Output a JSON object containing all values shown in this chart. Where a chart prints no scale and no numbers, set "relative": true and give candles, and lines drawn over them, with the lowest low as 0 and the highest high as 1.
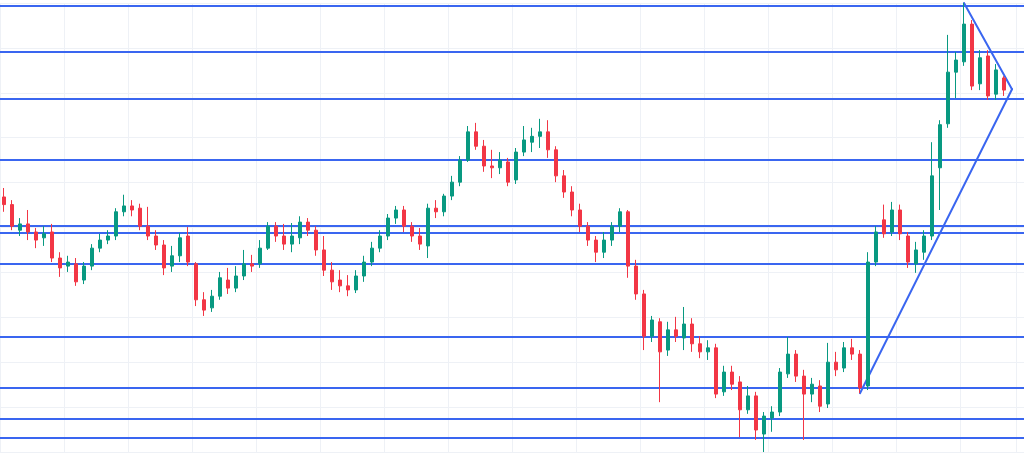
{
  "chart_data": {
    "type": "candlestick",
    "relative": true,
    "grid": true,
    "tick_labels": false,
    "categories": [
      null,
      null,
      null,
      null,
      null,
      null,
      null,
      null,
      null,
      null,
      null,
      null,
      null,
      null,
      null,
      null,
      null,
      null,
      null,
      null,
      null,
      null,
      null,
      null,
      null,
      null,
      null,
      null,
      null,
      null,
      null,
      null,
      null,
      null,
      null,
      null,
      null,
      null,
      null,
      null,
      null,
      null,
      null,
      null,
      null,
      null,
      null,
      null,
      null,
      null,
      null,
      null,
      null,
      null,
      null,
      null,
      null,
      null,
      null,
      null,
      null,
      null,
      null,
      null,
      null,
      null,
      null,
      null,
      null,
      null,
      null,
      null,
      null,
      null,
      null,
      null,
      null,
      null,
      null,
      null,
      null,
      null,
      null,
      null,
      null,
      null,
      null,
      null,
      null,
      null,
      null,
      null,
      null,
      null,
      null,
      null,
      null,
      null,
      null,
      null,
      null,
      null,
      null,
      null,
      null,
      null,
      null,
      null,
      null,
      null,
      null,
      null,
      null,
      null,
      null,
      null,
      null,
      null,
      null,
      null,
      null,
      null,
      null,
      null,
      null,
      null,
      null,
      null
    ],
    "ohlc": [
      [
        0.568,
        0.588,
        0.535,
        0.551
      ],
      [
        0.551,
        0.561,
        0.494,
        0.503
      ],
      [
        0.494,
        0.521,
        0.481,
        0.508
      ],
      [
        0.508,
        0.539,
        0.472,
        0.49
      ],
      [
        0.49,
        0.499,
        0.454,
        0.472
      ],
      [
        0.477,
        0.503,
        0.459,
        0.486
      ],
      [
        0.49,
        0.508,
        0.423,
        0.432
      ],
      [
        0.432,
        0.445,
        0.39,
        0.41
      ],
      [
        0.414,
        0.437,
        0.401,
        0.423
      ],
      [
        0.419,
        0.432,
        0.37,
        0.379
      ],
      [
        0.383,
        0.423,
        0.374,
        0.414
      ],
      [
        0.414,
        0.463,
        0.405,
        0.454
      ],
      [
        0.454,
        0.486,
        0.445,
        0.472
      ],
      [
        0.472,
        0.494,
        0.463,
        0.481
      ],
      [
        0.481,
        0.543,
        0.472,
        0.535
      ],
      [
        0.535,
        0.573,
        0.525,
        0.548
      ],
      [
        0.548,
        0.561,
        0.525,
        0.539
      ],
      [
        0.543,
        0.553,
        0.494,
        0.503
      ],
      [
        0.503,
        0.546,
        0.472,
        0.481
      ],
      [
        0.481,
        0.494,
        0.45,
        0.461
      ],
      [
        0.461,
        0.472,
        0.394,
        0.41
      ],
      [
        0.414,
        0.459,
        0.401,
        0.437
      ],
      [
        0.437,
        0.488,
        0.423,
        0.477
      ],
      [
        0.481,
        0.501,
        0.414,
        0.423
      ],
      [
        0.419,
        0.423,
        0.325,
        0.339
      ],
      [
        0.339,
        0.356,
        0.303,
        0.316
      ],
      [
        0.321,
        0.361,
        0.312,
        0.347
      ],
      [
        0.347,
        0.401,
        0.339,
        0.388
      ],
      [
        0.383,
        0.41,
        0.352,
        0.365
      ],
      [
        0.365,
        0.414,
        0.356,
        0.392
      ],
      [
        0.392,
        0.45,
        0.383,
        0.419
      ],
      [
        0.419,
        0.439,
        0.401,
        0.414
      ],
      [
        0.419,
        0.472,
        0.41,
        0.454
      ],
      [
        0.454,
        0.512,
        0.45,
        0.503
      ],
      [
        0.503,
        0.512,
        0.468,
        0.481
      ],
      [
        0.481,
        0.508,
        0.45,
        0.463
      ],
      [
        0.463,
        0.51,
        0.445,
        0.481
      ],
      [
        0.477,
        0.525,
        0.463,
        0.512
      ],
      [
        0.512,
        0.521,
        0.481,
        0.494
      ],
      [
        0.494,
        0.503,
        0.437,
        0.45
      ],
      [
        0.45,
        0.481,
        0.392,
        0.405
      ],
      [
        0.405,
        0.423,
        0.361,
        0.379
      ],
      [
        0.383,
        0.405,
        0.356,
        0.37
      ],
      [
        0.37,
        0.394,
        0.347,
        0.361
      ],
      [
        0.361,
        0.405,
        0.354,
        0.392
      ],
      [
        0.392,
        0.437,
        0.379,
        0.423
      ],
      [
        0.423,
        0.468,
        0.414,
        0.454
      ],
      [
        0.454,
        0.494,
        0.445,
        0.481
      ],
      [
        0.481,
        0.53,
        0.472,
        0.521
      ],
      [
        0.521,
        0.548,
        0.508,
        0.539
      ],
      [
        0.539,
        0.548,
        0.49,
        0.503
      ],
      [
        0.503,
        0.512,
        0.468,
        0.481
      ],
      [
        0.481,
        0.499,
        0.45,
        0.463
      ],
      [
        0.459,
        0.553,
        0.432,
        0.543
      ],
      [
        0.543,
        0.561,
        0.521,
        0.535
      ],
      [
        0.535,
        0.575,
        0.525,
        0.57
      ],
      [
        0.57,
        0.615,
        0.561,
        0.601
      ],
      [
        0.601,
        0.659,
        0.592,
        0.65
      ],
      [
        0.65,
        0.726,
        0.646,
        0.713
      ],
      [
        0.713,
        0.733,
        0.673,
        0.681
      ],
      [
        0.681,
        0.695,
        0.624,
        0.637
      ],
      [
        0.637,
        0.673,
        0.61,
        0.633
      ],
      [
        0.633,
        0.668,
        0.619,
        0.65
      ],
      [
        0.646,
        0.655,
        0.592,
        0.601
      ],
      [
        0.606,
        0.677,
        0.597,
        0.668
      ],
      [
        0.668,
        0.726,
        0.659,
        0.695
      ],
      [
        0.69,
        0.722,
        0.668,
        0.703
      ],
      [
        0.703,
        0.742,
        0.677,
        0.713
      ],
      [
        0.713,
        0.739,
        0.655,
        0.673
      ],
      [
        0.673,
        0.681,
        0.601,
        0.615
      ],
      [
        0.615,
        0.628,
        0.566,
        0.579
      ],
      [
        0.579,
        0.592,
        0.525,
        0.539
      ],
      [
        0.539,
        0.553,
        0.49,
        0.503
      ],
      [
        0.503,
        0.512,
        0.459,
        0.472
      ],
      [
        0.472,
        0.481,
        0.423,
        0.445
      ],
      [
        0.445,
        0.49,
        0.432,
        0.472
      ],
      [
        0.472,
        0.512,
        0.459,
        0.503
      ],
      [
        0.503,
        0.543,
        0.49,
        0.535
      ],
      [
        0.535,
        0.539,
        0.388,
        0.414
      ],
      [
        0.414,
        0.428,
        0.339,
        0.352
      ],
      [
        0.352,
        0.361,
        0.227,
        0.258
      ],
      [
        0.258,
        0.303,
        0.245,
        0.294
      ],
      [
        0.29,
        0.298,
        0.111,
        0.223
      ],
      [
        0.227,
        0.29,
        0.214,
        0.272
      ],
      [
        0.272,
        0.301,
        0.245,
        0.258
      ],
      [
        0.254,
        0.323,
        0.227,
        0.285
      ],
      [
        0.285,
        0.298,
        0.223,
        0.241
      ],
      [
        0.241,
        0.258,
        0.209,
        0.223
      ],
      [
        0.223,
        0.249,
        0.205,
        0.232
      ],
      [
        0.232,
        0.241,
        0.12,
        0.129
      ],
      [
        0.134,
        0.192,
        0.125,
        0.178
      ],
      [
        0.178,
        0.192,
        0.138,
        0.151
      ],
      [
        0.156,
        0.169,
        0.033,
        0.094
      ],
      [
        0.094,
        0.147,
        0.085,
        0.125
      ],
      [
        0.125,
        0.134,
        0.027,
        0.049
      ],
      [
        0.04,
        0.089,
        0,
        0.08
      ],
      [
        0.076,
        0.102,
        0.045,
        0.089
      ],
      [
        0.089,
        0.187,
        0.08,
        0.178
      ],
      [
        0.174,
        0.256,
        0.165,
        0.218
      ],
      [
        0.218,
        0.227,
        0.156,
        0.169
      ],
      [
        0.169,
        0.183,
        0.027,
        0.129
      ],
      [
        0.129,
        0.165,
        0.111,
        0.151
      ],
      [
        0.147,
        0.16,
        0.089,
        0.102
      ],
      [
        0.107,
        0.243,
        0.098,
        0.2
      ],
      [
        0.2,
        0.223,
        0.169,
        0.183
      ],
      [
        0.187,
        0.245,
        0.178,
        0.232
      ],
      [
        0.232,
        0.252,
        0.205,
        0.218
      ],
      [
        0.218,
        0.227,
        0.131,
        0.143
      ],
      [
        0.147,
        0.445,
        0.138,
        0.423
      ],
      [
        0.423,
        0.503,
        0.414,
        0.49
      ],
      [
        0.517,
        0.551,
        0.477,
        0.486
      ],
      [
        0.49,
        0.557,
        0.481,
        0.539
      ],
      [
        0.539,
        0.551,
        0.472,
        0.486
      ],
      [
        0.481,
        0.49,
        0.41,
        0.423
      ],
      [
        0.419,
        0.468,
        0.399,
        0.45
      ],
      [
        0.445,
        0.494,
        0.428,
        0.481
      ],
      [
        0.481,
        0.69,
        0.472,
        0.615
      ],
      [
        0.633,
        0.739,
        0.539,
        0.729
      ],
      [
        0.731,
        0.929,
        0.722,
        0.846
      ],
      [
        0.846,
        0.891,
        0.788,
        0.873
      ],
      [
        0.869,
        1,
        0.86,
        0.953
      ],
      [
        0.953,
        0.962,
        0.806,
        0.815
      ],
      [
        0.82,
        0.895,
        0.806,
        0.878
      ],
      [
        0.882,
        0.895,
        0.784,
        0.793
      ],
      [
        0.797,
        0.864,
        0.784,
        0.851
      ],
      [
        0.833,
        0.837,
        0.793,
        0.806
      ],
      null,
      null
    ],
    "colors": [
      "#f23645",
      "#f23645",
      "#089981",
      "#f23645",
      "#f23645",
      "#089981",
      "#f23645",
      "#f23645",
      "#089981",
      "#f23645",
      "#089981",
      "#089981",
      "#089981",
      "#089981",
      "#089981",
      "#089981",
      "#f23645",
      "#f23645",
      "#f23645",
      "#f23645",
      "#f23645",
      "#089981",
      "#089981",
      "#f23645",
      "#f23645",
      "#f23645",
      "#089981",
      "#089981",
      "#f23645",
      "#089981",
      "#089981",
      "#f23645",
      "#089981",
      "#089981",
      "#f23645",
      "#f23645",
      "#089981",
      "#089981",
      "#f23645",
      "#f23645",
      "#f23645",
      "#f23645",
      "#f23645",
      "#f23645",
      "#089981",
      "#089981",
      "#089981",
      "#089981",
      "#089981",
      "#089981",
      "#f23645",
      "#f23645",
      "#f23645",
      "#089981",
      "#f23645",
      "#089981",
      "#089981",
      "#089981",
      "#089981",
      "#f23645",
      "#f23645",
      "#f23645",
      "#089981",
      "#f23645",
      "#089981",
      "#089981",
      "#089981",
      "#089981",
      "#f23645",
      "#f23645",
      "#f23645",
      "#f23645",
      "#f23645",
      "#f23645",
      "#f23645",
      "#089981",
      "#089981",
      "#089981",
      "#f23645",
      "#f23645",
      "#f23645",
      "#089981",
      "#f23645",
      "#089981",
      "#f23645",
      "#089981",
      "#f23645",
      "#f23645",
      "#089981",
      "#f23645",
      "#089981",
      "#f23645",
      "#f23645",
      "#089981",
      "#f23645",
      "#089981",
      "#089981",
      "#089981",
      "#089981",
      "#f23645",
      "#f23645",
      "#089981",
      "#f23645",
      "#089981",
      "#f23645",
      "#089981",
      "#f23645",
      "#f23645",
      "#089981",
      "#089981",
      "#f23645",
      "#089981",
      "#f23645",
      "#f23645",
      "#089981",
      "#089981",
      "#089981",
      "#089981",
      "#089981",
      "#089981",
      "#089981",
      "#f23645",
      "#089981",
      "#f23645",
      "#089981",
      "#f23645",
      null,
      null
    ],
    "series": [
      {
        "type": "line",
        "color": "#3a66f0",
        "values": [
          null,
          null,
          null,
          null,
          null,
          null,
          null,
          null,
          null,
          null,
          null,
          null,
          null,
          null,
          null,
          null,
          null,
          null,
          null,
          null,
          null,
          null,
          null,
          null,
          null,
          null,
          null,
          null,
          null,
          null,
          null,
          null,
          null,
          null,
          null,
          null,
          null,
          null,
          null,
          null,
          null,
          null,
          null,
          null,
          null,
          null,
          null,
          null,
          null,
          null,
          null,
          null,
          null,
          null,
          null,
          null,
          null,
          null,
          null,
          null,
          null,
          null,
          null,
          null,
          null,
          null,
          null,
          null,
          null,
          null,
          null,
          null,
          null,
          null,
          null,
          null,
          null,
          null,
          null,
          null,
          null,
          null,
          null,
          null,
          null,
          null,
          null,
          null,
          null,
          null,
          null,
          null,
          null,
          null,
          null,
          null,
          null,
          null,
          null,
          null,
          null,
          null,
          null,
          null,
          null,
          null,
          null,
          0.131,
          null,
          null,
          null,
          null,
          null,
          null,
          null,
          null,
          null,
          null,
          null,
          null,
          null,
          null,
          null,
          null,
          null,
          null,
          0.808,
          null
        ]
      },
      {
        "type": "line",
        "color": "#3a66f0",
        "values": [
          null,
          null,
          null,
          null,
          null,
          null,
          null,
          null,
          null,
          null,
          null,
          null,
          null,
          null,
          null,
          null,
          null,
          null,
          null,
          null,
          null,
          null,
          null,
          null,
          null,
          null,
          null,
          null,
          null,
          null,
          null,
          null,
          null,
          null,
          null,
          null,
          null,
          null,
          null,
          null,
          null,
          null,
          null,
          null,
          null,
          null,
          null,
          null,
          null,
          null,
          null,
          null,
          null,
          null,
          null,
          null,
          null,
          null,
          null,
          null,
          null,
          null,
          null,
          null,
          null,
          null,
          null,
          null,
          null,
          null,
          null,
          null,
          null,
          null,
          null,
          null,
          null,
          null,
          null,
          null,
          null,
          null,
          null,
          null,
          null,
          null,
          null,
          null,
          null,
          null,
          null,
          null,
          null,
          null,
          null,
          null,
          null,
          null,
          null,
          null,
          null,
          null,
          null,
          null,
          null,
          null,
          null,
          null,
          null,
          null,
          null,
          null,
          null,
          null,
          null,
          null,
          null,
          null,
          null,
          null,
          1,
          null,
          null,
          null,
          null,
          null,
          0.808,
          null
        ]
      }
    ],
    "ref_lines": [
      {
        "axis": "y",
        "value": 0.994,
        "color": "#3a66f0"
      },
      {
        "axis": "y",
        "value": 0.891,
        "color": "#3a66f0"
      },
      {
        "axis": "y",
        "value": 0.787,
        "color": "#3a66f0"
      },
      {
        "axis": "y",
        "value": 0.652,
        "color": "#3a66f0"
      },
      {
        "axis": "y",
        "value": 0.503,
        "color": "#3a66f0"
      },
      {
        "axis": "y",
        "value": 0.488,
        "color": "#3a66f0"
      },
      {
        "axis": "y",
        "value": 0.419,
        "color": "#3a66f0"
      },
      {
        "axis": "y",
        "value": 0.257,
        "color": "#3a66f0"
      },
      {
        "axis": "y",
        "value": 0.143,
        "color": "#3a66f0"
      },
      {
        "axis": "y",
        "value": 0.075,
        "color": "#3a66f0"
      },
      {
        "axis": "y",
        "value": 0.032,
        "color": "#3a66f0"
      }
    ]
  }
}
